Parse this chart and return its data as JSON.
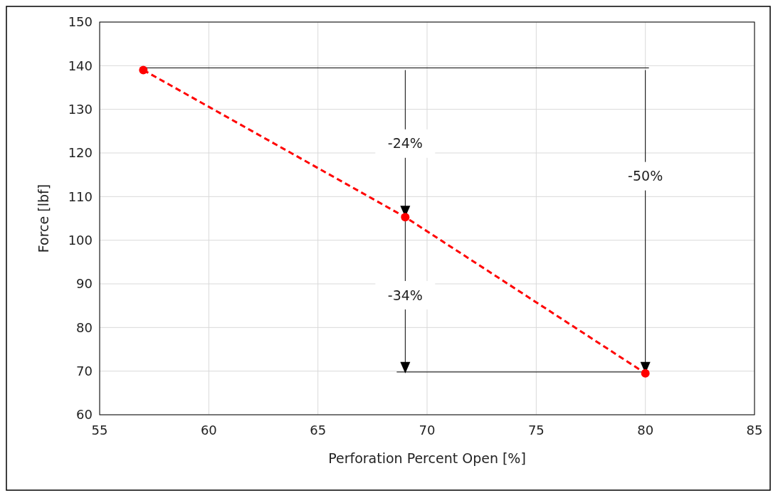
{
  "chart_data": {
    "type": "line",
    "xlabel": "Perforation Percent Open [%]",
    "ylabel": "Force [lbf]",
    "x": [
      57,
      69,
      80
    ],
    "series": [
      {
        "color": "#ff0000",
        "values": [
          139,
          105.3,
          69.5
        ]
      }
    ],
    "xlim": [
      55,
      85
    ],
    "xticks": [
      55,
      60,
      65,
      70,
      75,
      80,
      85
    ],
    "ylim": [
      60,
      150
    ],
    "yticks": [
      60,
      70,
      80,
      90,
      100,
      110,
      120,
      130,
      140,
      150
    ],
    "grid": true,
    "marker": "circle",
    "line_style": "dashed",
    "ref_lines": [
      {
        "axis": "y",
        "value": 139.5
      },
      {
        "axis": "y",
        "value": 69.8
      }
    ],
    "annotations": [
      "-24%",
      "-34%",
      "-50%"
    ]
  }
}
